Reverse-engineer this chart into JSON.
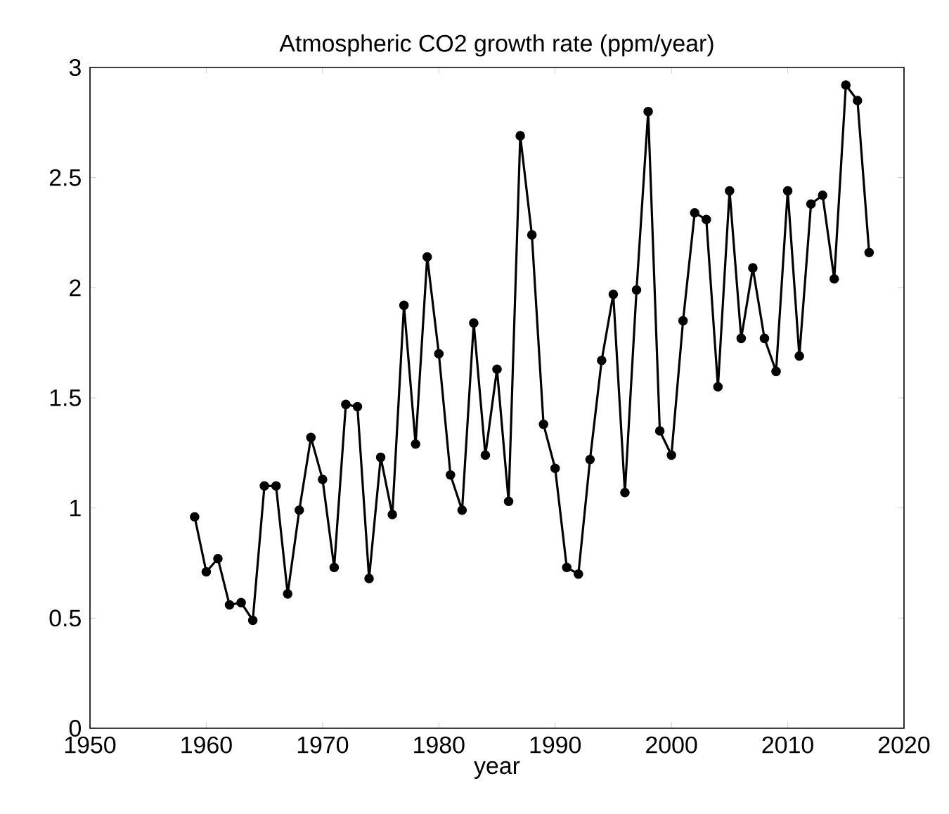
{
  "chart_data": {
    "type": "line",
    "title": "Atmospheric CO2 growth rate (ppm/year)",
    "xlabel": "year",
    "x": [
      1959,
      1960,
      1961,
      1962,
      1963,
      1964,
      1965,
      1966,
      1967,
      1968,
      1969,
      1970,
      1971,
      1972,
      1973,
      1974,
      1975,
      1976,
      1977,
      1978,
      1979,
      1980,
      1981,
      1982,
      1983,
      1984,
      1985,
      1986,
      1987,
      1988,
      1989,
      1990,
      1991,
      1992,
      1993,
      1994,
      1995,
      1996,
      1997,
      1998,
      1999,
      2000,
      2001,
      2002,
      2003,
      2004,
      2005,
      2006,
      2007,
      2008,
      2009,
      2010,
      2011,
      2012,
      2013,
      2014,
      2015,
      2016,
      2017
    ],
    "series": [
      {
        "color": "#000000",
        "values": [
          0.96,
          0.71,
          0.77,
          0.56,
          0.57,
          0.49,
          1.1,
          1.1,
          0.61,
          0.99,
          1.32,
          1.13,
          0.73,
          1.47,
          1.46,
          0.68,
          1.23,
          0.97,
          1.92,
          1.29,
          2.14,
          1.7,
          1.15,
          0.99,
          1.84,
          1.24,
          1.63,
          1.03,
          2.69,
          2.24,
          1.38,
          1.18,
          0.73,
          0.7,
          1.22,
          1.67,
          1.97,
          1.07,
          1.99,
          2.8,
          1.35,
          1.24,
          1.85,
          2.34,
          2.31,
          1.55,
          2.44,
          1.77,
          2.09,
          1.77,
          1.62,
          2.44,
          1.69,
          2.38,
          2.42,
          2.04,
          2.92,
          2.85,
          2.16
        ]
      }
    ],
    "xlim": [
      1950,
      2020
    ],
    "xticks": [
      1950,
      1960,
      1970,
      1980,
      1990,
      2000,
      2010,
      2020
    ],
    "ylim": [
      0,
      3
    ],
    "yticks": [
      0,
      0.5,
      1,
      1.5,
      2,
      2.5,
      3
    ],
    "grid": false,
    "marker": "circle",
    "line_style": "solid"
  }
}
